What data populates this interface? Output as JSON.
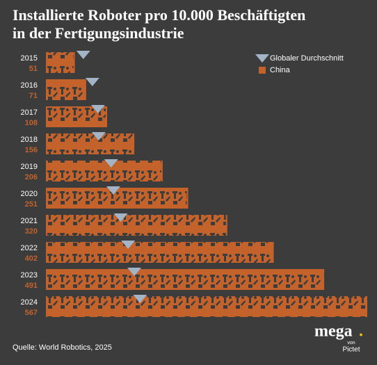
{
  "chart_data": {
    "type": "bar",
    "title": "Installierte Roboter pro 10.000 Beschäftigten",
    "subtitle": "in der Fertigungsindustrie",
    "categories": [
      "2015",
      "2016",
      "2017",
      "2018",
      "2019",
      "2020",
      "2021",
      "2022",
      "2023",
      "2024"
    ],
    "series": [
      {
        "name": "Globaler Durchschnitt",
        "color": "#a3b4c6",
        "marker": "triangle",
        "values": [
          66,
          82,
          92,
          93,
          115,
          119,
          132,
          145,
          156,
          166
        ]
      },
      {
        "name": "China",
        "color": "#c4622b",
        "values": [
          51,
          71,
          108,
          156,
          206,
          251,
          320,
          402,
          491,
          567
        ]
      }
    ],
    "source": "Quelle: World Robotics, 2025",
    "logo": {
      "brand": "mega",
      "dot": ".",
      "by": "von",
      "company": "Pictet"
    }
  }
}
